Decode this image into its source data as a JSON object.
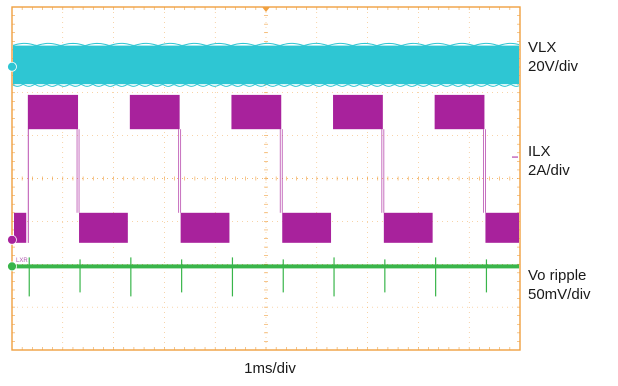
{
  "chart_data": {
    "type": "line",
    "title": "",
    "xlabel": "1ms/div",
    "grid": true,
    "divisions": {
      "x": 10,
      "y": 8
    },
    "colors": {
      "grid": "#f0a040",
      "VLX": "#2ec6d3",
      "ILX": "#a8229c",
      "Vo ripple": "#39b54a"
    },
    "x": [
      0,
      1,
      2,
      3,
      4,
      5,
      6,
      7,
      8,
      9,
      10
    ],
    "series": [
      {
        "name": "VLX",
        "scale_label": "20V/div",
        "description": "switching node, solid dense band",
        "band_divs": [
          6.2,
          7.1
        ]
      },
      {
        "name": "ILX",
        "scale_label": "2A/div",
        "description": "square wave envelope, high/low levels (div)",
        "high_divs": [
          5.15,
          5.95
        ],
        "low_divs": [
          2.5,
          3.2
        ],
        "high_intervals_div": [
          [
            0.3,
            1.3
          ],
          [
            2.3,
            3.3
          ],
          [
            4.3,
            5.3
          ],
          [
            6.3,
            7.3
          ],
          [
            8.3,
            9.3
          ]
        ],
        "low_intervals_div": [
          [
            1.3,
            2.3
          ],
          [
            3.3,
            4.3
          ],
          [
            5.3,
            6.3
          ],
          [
            7.3,
            8.3
          ],
          [
            9.3,
            10
          ]
        ]
      },
      {
        "name": "Vo ripple",
        "scale_label": "50mV/div",
        "description": "flat trace with spikes at each current transition",
        "level_div": 1.95,
        "spikes_div": [
          0.3,
          1.3,
          2.3,
          3.3,
          4.3,
          5.3,
          6.3,
          7.3,
          8.3,
          9.3
        ]
      }
    ]
  },
  "labels": {
    "vlx": "VLX\n20V/div",
    "ilx": "ILX\n2A/div",
    "vo": "Vo ripple\n50mV/div",
    "time": "1ms/div"
  },
  "small_marker_text": "LXR"
}
